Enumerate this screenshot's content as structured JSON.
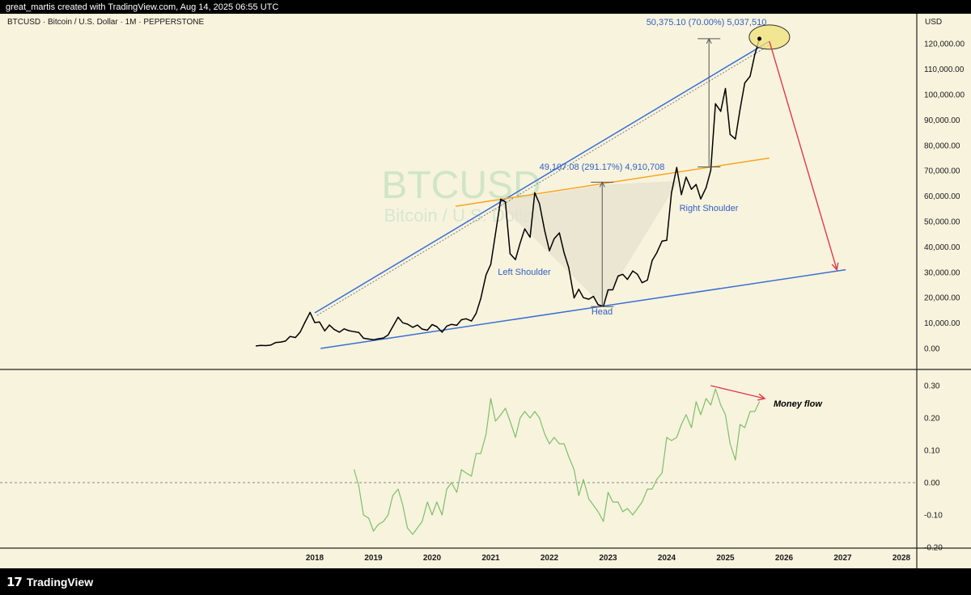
{
  "header": {
    "text": "great_martis created with TradingView.com, Aug 14, 2025 06:55 UTC"
  },
  "footer": {
    "logo_mark": "17",
    "logo_text": "TradingView"
  },
  "chart": {
    "symbol_info": "BTCUSD · Bitcoin / U.S. Dollar · 1M · PEPPERSTONE",
    "currency": "USD",
    "watermark_symbol": "BTCUSD",
    "watermark_name": "Bitcoin / U.S. Dollar"
  },
  "annotations": {
    "upper_measure": "50,375.10 (70.00%) 5,037,510",
    "lower_measure": "49,107.08 (291.17%) 4,910,708",
    "left_shoulder": "Left Shoulder",
    "head": "Head",
    "right_shoulder": "Right Shoulder",
    "money_flow": "Money flow"
  },
  "colors": {
    "price_line": "#000000",
    "trendline": "#3b6fd4",
    "neckline": "#f5a623",
    "arrow": "#e0394a",
    "indicator": "#7dbf6a",
    "background": "#f8f3dd"
  },
  "chart_data": [
    {
      "type": "line",
      "title": "BTCUSD · Bitcoin / U.S. Dollar · 1M · PEPPERSTONE",
      "ylabel": "USD",
      "ylim": [
        -8000,
        128000
      ],
      "y_ticks": [
        "120,000.00",
        "110,000.00",
        "100,000.00",
        "90,000.00",
        "80,000.00",
        "70,000.00",
        "60,000.00",
        "50,000.00",
        "40,000.00",
        "30,000.00",
        "20,000.00",
        "10,000.00",
        "0.00"
      ],
      "x_ticks": [
        "2018",
        "2019",
        "2020",
        "2021",
        "2022",
        "2023",
        "2024",
        "2025",
        "2026",
        "2027",
        "2028"
      ],
      "series": [
        {
          "x": [
            2017.0,
            2017.08,
            2017.17,
            2017.25,
            2017.33,
            2017.42,
            2017.5,
            2017.58,
            2017.67,
            2017.75,
            2017.83,
            2017.92,
            2018.0,
            2018.08,
            2018.17,
            2018.25,
            2018.33,
            2018.42,
            2018.5,
            2018.58,
            2018.67,
            2018.75,
            2018.83,
            2018.92,
            2019.0,
            2019.08,
            2019.17,
            2019.25,
            2019.33,
            2019.42,
            2019.5,
            2019.58,
            2019.67,
            2019.75,
            2019.83,
            2019.92,
            2020.0,
            2020.08,
            2020.17,
            2020.25,
            2020.33,
            2020.42,
            2020.5,
            2020.58,
            2020.67,
            2020.75,
            2020.83,
            2020.92,
            2021.0,
            2021.08,
            2021.17,
            2021.25,
            2021.33,
            2021.42,
            2021.5,
            2021.58,
            2021.67,
            2021.75,
            2021.83,
            2021.92,
            2022.0,
            2022.08,
            2022.17,
            2022.25,
            2022.33,
            2022.42,
            2022.5,
            2022.58,
            2022.67,
            2022.75,
            2022.83,
            2022.92,
            2023.0,
            2023.08,
            2023.17,
            2023.25,
            2023.33,
            2023.42,
            2023.5,
            2023.58,
            2023.67,
            2023.75,
            2023.83,
            2023.92,
            2024.0,
            2024.08,
            2024.17,
            2024.25,
            2024.33,
            2024.42,
            2024.5,
            2024.58,
            2024.67,
            2024.75,
            2024.83,
            2024.92,
            2025.0,
            2025.08,
            2025.17,
            2025.25,
            2025.33,
            2025.42,
            2025.5,
            2025.58
          ],
          "values": [
            1000,
            1200,
            1100,
            1300,
            2300,
            2500,
            2900,
            4700,
            4300,
            6400,
            10200,
            14200,
            10200,
            10400,
            6900,
            9200,
            7500,
            6400,
            7700,
            7000,
            6600,
            6300,
            4000,
            3700,
            3400,
            3800,
            4100,
            5300,
            8600,
            12300,
            10100,
            9600,
            8300,
            9200,
            7600,
            7200,
            9400,
            8600,
            6400,
            8800,
            9500,
            9100,
            11300,
            11700,
            10800,
            13800,
            19700,
            29000,
            33100,
            45100,
            58800,
            57700,
            37300,
            35000,
            41500,
            47100,
            43800,
            61300,
            57000,
            46300,
            38500,
            43200,
            45500,
            37700,
            31800,
            19900,
            23300,
            20000,
            19400,
            20500,
            17200,
            16600,
            23100,
            23100,
            28500,
            29200,
            27200,
            30500,
            29200,
            25900,
            26900,
            34600,
            37700,
            42300,
            42600,
            61200,
            71300,
            60600,
            67500,
            62700,
            64600,
            58900,
            63300,
            70200,
            96400,
            93400,
            102400,
            84300,
            82500,
            94200,
            104600,
            107200,
            115700,
            122000
          ]
        }
      ],
      "annotations": [
        {
          "type": "trendline",
          "from": [
            2018.0,
            14000
          ],
          "to": [
            2025.75,
            121000
          ],
          "color": "#3b6fd4"
        },
        {
          "type": "trendline",
          "from": [
            2018.1,
            0
          ],
          "to": [
            2027.05,
            31000
          ],
          "color": "#3b6fd4"
        },
        {
          "type": "neckline",
          "from": [
            2020.4,
            56000
          ],
          "to": [
            2025.75,
            75000
          ],
          "color": "#f5a623"
        },
        {
          "type": "arrow",
          "from": [
            2025.75,
            121000
          ],
          "to": [
            2026.9,
            31000
          ],
          "color": "#e0394a"
        }
      ]
    },
    {
      "type": "line",
      "title": "Money flow",
      "ylim": [
        -0.2,
        0.3
      ],
      "y_ticks": [
        "0.30",
        "0.20",
        "0.10",
        "0.00",
        "-0.10",
        "-0.20"
      ],
      "series": [
        {
          "x": [
            2018.67,
            2018.75,
            2018.83,
            2018.92,
            2019.0,
            2019.08,
            2019.17,
            2019.25,
            2019.33,
            2019.42,
            2019.5,
            2019.58,
            2019.67,
            2019.75,
            2019.83,
            2019.92,
            2020.0,
            2020.08,
            2020.17,
            2020.25,
            2020.33,
            2020.42,
            2020.5,
            2020.58,
            2020.67,
            2020.75,
            2020.83,
            2020.92,
            2021.0,
            2021.08,
            2021.17,
            2021.25,
            2021.33,
            2021.42,
            2021.5,
            2021.58,
            2021.67,
            2021.75,
            2021.83,
            2021.92,
            2022.0,
            2022.08,
            2022.17,
            2022.25,
            2022.33,
            2022.42,
            2022.5,
            2022.58,
            2022.67,
            2022.75,
            2022.83,
            2022.92,
            2023.0,
            2023.08,
            2023.17,
            2023.25,
            2023.33,
            2023.42,
            2023.5,
            2023.58,
            2023.67,
            2023.75,
            2023.83,
            2023.92,
            2024.0,
            2024.08,
            2024.17,
            2024.25,
            2024.33,
            2024.42,
            2024.5,
            2024.58,
            2024.67,
            2024.75,
            2024.83,
            2024.92,
            2025.0,
            2025.08,
            2025.17,
            2025.25,
            2025.33,
            2025.42,
            2025.5,
            2025.58
          ],
          "values": [
            0.04,
            -0.01,
            -0.1,
            -0.11,
            -0.15,
            -0.13,
            -0.12,
            -0.1,
            -0.04,
            -0.02,
            -0.07,
            -0.14,
            -0.16,
            -0.14,
            -0.12,
            -0.06,
            -0.1,
            -0.06,
            -0.1,
            -0.02,
            0.0,
            -0.03,
            0.04,
            0.03,
            0.02,
            0.09,
            0.09,
            0.15,
            0.26,
            0.19,
            0.21,
            0.23,
            0.19,
            0.14,
            0.2,
            0.22,
            0.2,
            0.22,
            0.2,
            0.15,
            0.12,
            0.14,
            0.12,
            0.12,
            0.08,
            0.04,
            -0.04,
            0.01,
            -0.05,
            -0.07,
            -0.09,
            -0.12,
            -0.03,
            -0.06,
            -0.06,
            -0.09,
            -0.08,
            -0.1,
            -0.08,
            -0.06,
            -0.02,
            -0.02,
            0.01,
            0.03,
            0.14,
            0.13,
            0.14,
            0.18,
            0.21,
            0.17,
            0.25,
            0.21,
            0.26,
            0.24,
            0.29,
            0.24,
            0.21,
            0.12,
            0.07,
            0.18,
            0.17,
            0.22,
            0.22,
            0.25
          ]
        }
      ],
      "annotations": [
        {
          "type": "arrow",
          "from": [
            2024.75,
            0.3
          ],
          "to": [
            2025.67,
            0.26
          ],
          "color": "#e0394a",
          "label": "Money flow"
        }
      ]
    }
  ]
}
